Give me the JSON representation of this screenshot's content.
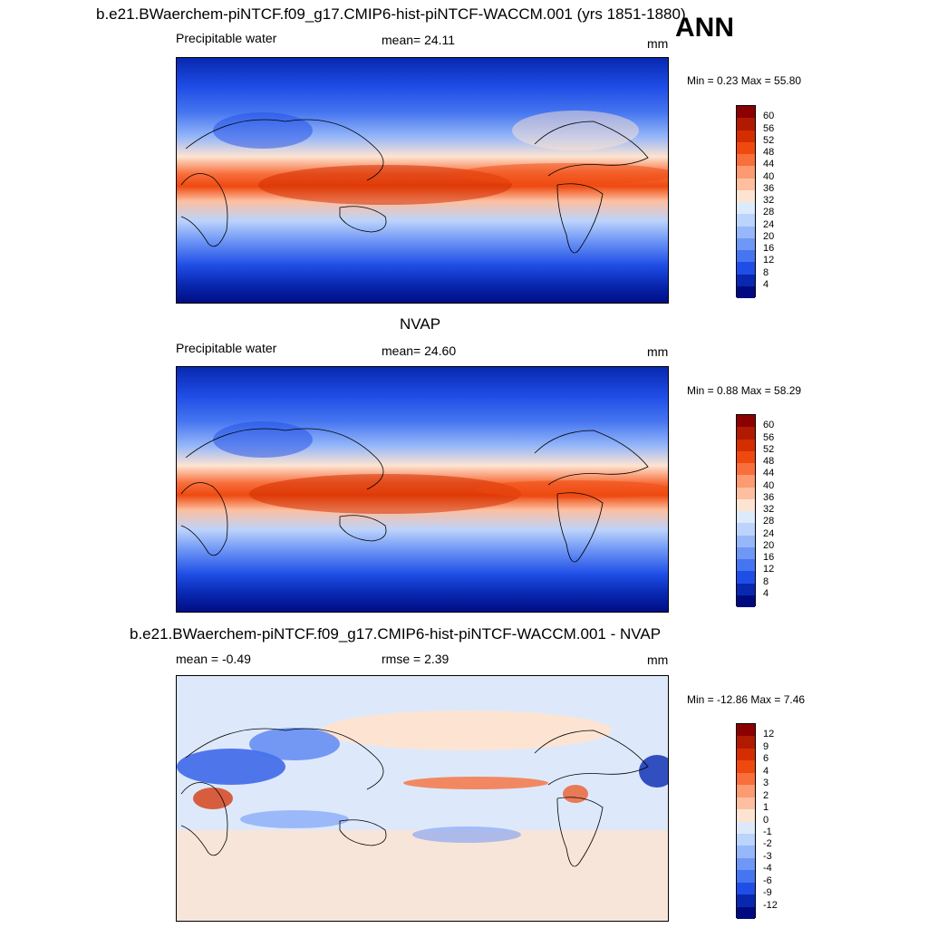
{
  "main_title": "b.e21.BWaerchem-piNTCF.f09_g17.CMIP6-hist-piNTCF-WACCM.001 (yrs 1851-1880)",
  "season": "ANN",
  "panel1": {
    "variable": "Precipitable water",
    "mean_text": "mean=  24.11",
    "units": "mm",
    "minmax": "Min =   0.23 Max =  55.80"
  },
  "panel2": {
    "title": "NVAP",
    "variable": "Precipitable water",
    "mean_text": "mean=  24.60",
    "units": "mm",
    "minmax": "Min =   0.88 Max =  58.29"
  },
  "panel3": {
    "title": "b.e21.BWaerchem-piNTCF.f09_g17.CMIP6-hist-piNTCF-WACCM.001 - NVAP",
    "mean_text": "mean =  -0.49",
    "rmse_text": "rmse =   2.39",
    "units": "mm",
    "minmax": "Min = -12.86 Max =   7.46"
  },
  "colorbar_abs": {
    "labels": [
      "60",
      "56",
      "52",
      "48",
      "44",
      "40",
      "36",
      "32",
      "28",
      "24",
      "20",
      "16",
      "12",
      "8",
      "4"
    ],
    "colors": [
      "#8b0000",
      "#b01a00",
      "#d42e00",
      "#ee4a10",
      "#f86f3c",
      "#fc9a72",
      "#fdbfa0",
      "#fde4d2",
      "#ddeafc",
      "#bcd3fb",
      "#96b7f9",
      "#6f97f6",
      "#4575f0",
      "#1f4ee6",
      "#0828b0",
      "#000a80"
    ]
  },
  "colorbar_diff": {
    "labels": [
      "12",
      "9",
      "6",
      "4",
      "3",
      "2",
      "1",
      "0",
      "-1",
      "-2",
      "-3",
      "-4",
      "-6",
      "-9",
      "-12"
    ],
    "colors": [
      "#8b0000",
      "#b01a00",
      "#d42e00",
      "#ee4a10",
      "#f86f3c",
      "#fc9a72",
      "#fdbfa0",
      "#fde4d2",
      "#dde9fb",
      "#bcd3fb",
      "#96b7f9",
      "#6f97f6",
      "#4575f0",
      "#1f4ee6",
      "#0828b0",
      "#000a80"
    ]
  }
}
